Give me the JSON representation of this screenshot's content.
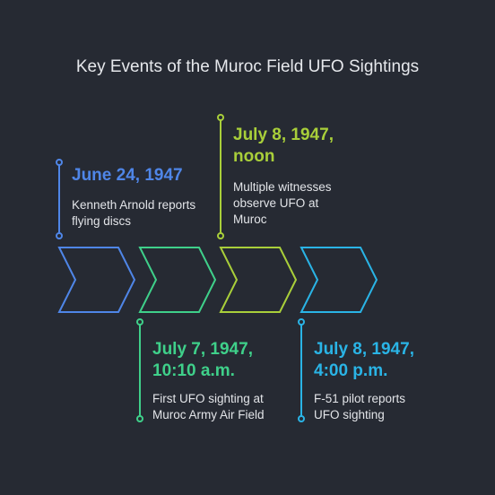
{
  "title": "Key Events of the Muroc Field UFO Sightings",
  "events": [
    {
      "date": "June 24, 1947",
      "description": "Kenneth Arnold reports flying discs",
      "color": "#4f86e8"
    },
    {
      "date": "July 7, 1947, 10:10 a.m.",
      "description": "First UFO sighting at Muroc Army Air Field",
      "color": "#3fd08a"
    },
    {
      "date": "July 8, 1947, noon",
      "description": "Multiple witnesses observe UFO at Muroc",
      "color": "#a9cf3a"
    },
    {
      "date": "July 8, 1947, 4:00 p.m.",
      "description": "F-51 pilot reports UFO sighting",
      "color": "#2ab4e6"
    }
  ]
}
